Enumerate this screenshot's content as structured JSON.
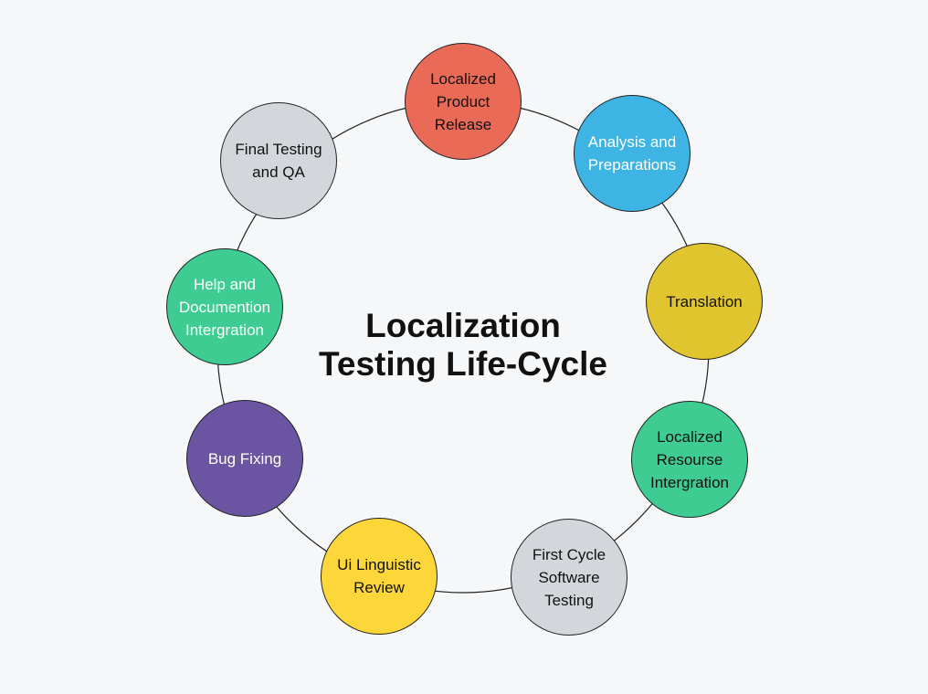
{
  "title": "Localization\nTesting Life-Cycle",
  "stages": [
    {
      "label": "Localized\nProduct\nRelease",
      "color": "#ea6a58",
      "text_color": "#111111"
    },
    {
      "label": "Analysis and\nPreparations",
      "color": "#3db4e4",
      "text_color": "#ffffff"
    },
    {
      "label": "Translation",
      "color": "#e1c52f",
      "text_color": "#111111"
    },
    {
      "label": "Localized\nResourse\nIntergration",
      "color": "#3fcc92",
      "text_color": "#111111"
    },
    {
      "label": "First Cycle\nSoftware\nTesting",
      "color": "#d3d7dc",
      "text_color": "#111111"
    },
    {
      "label": "Ui Linguistic\nReview",
      "color": "#fdd63a",
      "text_color": "#111111"
    },
    {
      "label": "Bug Fixing",
      "color": "#6b55a2",
      "text_color": "#ffffff"
    },
    {
      "label": "Help and\nDocumention\nIntergration",
      "color": "#3fcc92",
      "text_color": "#ffffff"
    },
    {
      "label": "Final Testing\nand QA",
      "color": "#d3d7dc",
      "text_color": "#111111"
    }
  ]
}
